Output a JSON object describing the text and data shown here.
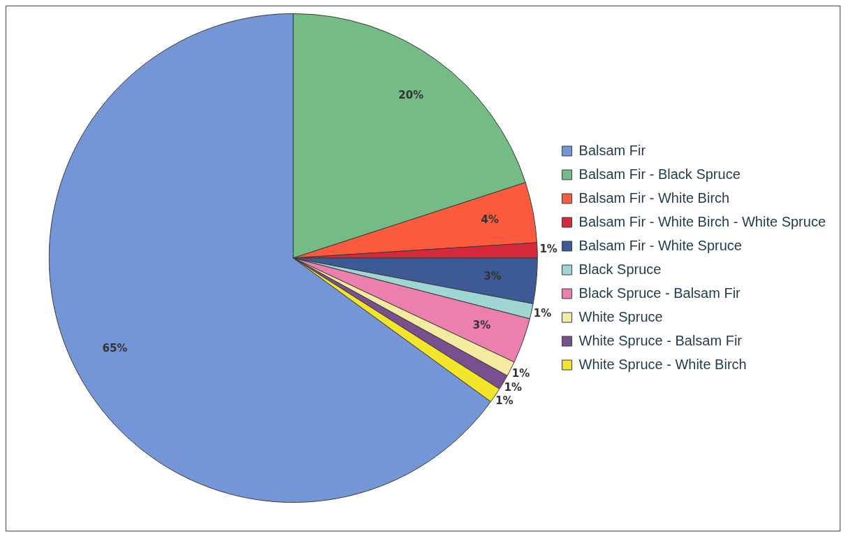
{
  "chart_data": {
    "type": "pie",
    "categories": [
      "Balsam Fir",
      "Balsam Fir - Black Spruce",
      "Balsam Fir - White Birch",
      "Balsam Fir - White Birch - White Spruce",
      "Balsam Fir - White Spruce",
      "Black Spruce",
      "Black Spruce - Balsam Fir",
      "White Spruce",
      "White Spruce - Balsam Fir",
      "White Spruce - White Birch"
    ],
    "values": [
      65,
      20,
      4,
      1,
      3,
      1,
      3,
      1,
      1,
      1
    ],
    "colors": [
      "#7596d6",
      "#74bb85",
      "#fb5a3c",
      "#d8283c",
      "#3e5a94",
      "#9fd6d4",
      "#ec7fae",
      "#f4eba0",
      "#7a4f8f",
      "#f2e52a"
    ],
    "value_labels": [
      "65%",
      "20%",
      "4%",
      "1%",
      "3%",
      "1%",
      "3%",
      "1%",
      "1%",
      "1%"
    ],
    "legend": "right"
  }
}
